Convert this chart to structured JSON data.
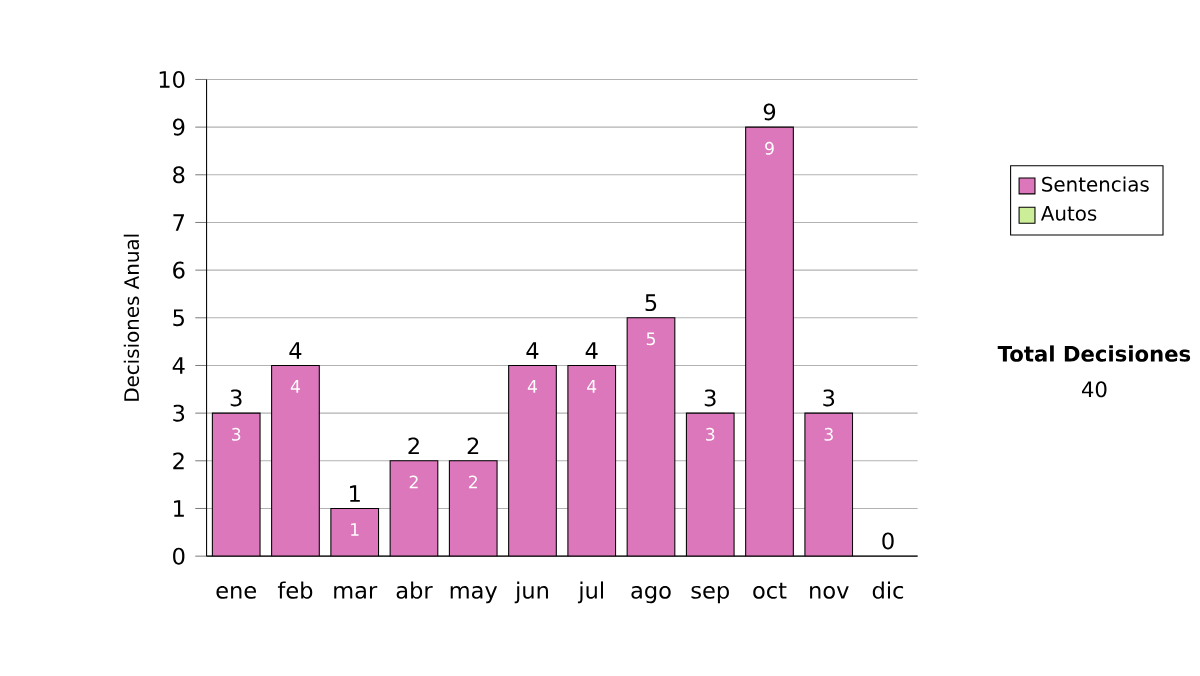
{
  "chart_data": {
    "type": "bar",
    "ylabel": "Decisiones Anual",
    "categories": [
      "ene",
      "feb",
      "mar",
      "abr",
      "may",
      "jun",
      "jul",
      "ago",
      "sep",
      "oct",
      "nov",
      "dic"
    ],
    "stacked": true,
    "series": [
      {
        "name": "Sentencias",
        "color": "#dd77bb",
        "values": [
          3,
          4,
          1,
          2,
          2,
          4,
          4,
          5,
          3,
          9,
          3,
          0
        ],
        "value_labels": [
          "3",
          "4",
          "1",
          "2",
          "2",
          "4",
          "4",
          "5",
          "3",
          "9",
          "3",
          null
        ]
      },
      {
        "name": "Autos",
        "color": "#ccee99",
        "values": [
          0,
          0,
          0,
          0,
          0,
          0,
          0,
          0,
          0,
          0,
          0,
          0
        ]
      }
    ],
    "totals": [
      "3",
      "4",
      "1",
      "2",
      "2",
      "4",
      "4",
      "5",
      "3",
      "9",
      "3",
      "0"
    ],
    "ylim": [
      0,
      10
    ],
    "yticks": [
      0,
      1,
      2,
      3,
      4,
      5,
      6,
      7,
      8,
      9,
      10
    ],
    "grid": "y",
    "legend": "right",
    "annotations": [
      "Total Decisiones",
      "40"
    ]
  }
}
